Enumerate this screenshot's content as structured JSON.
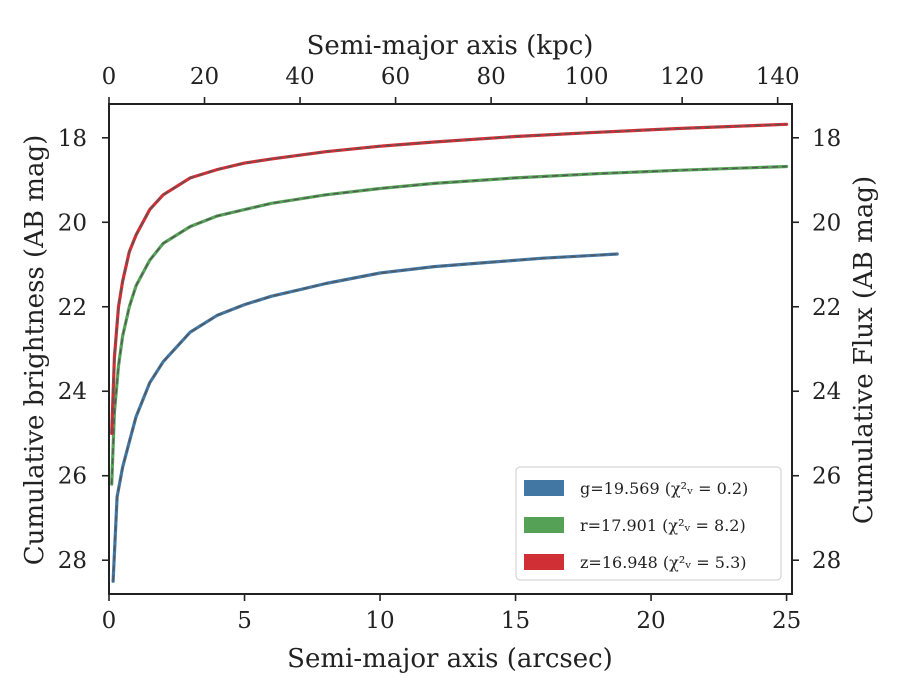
{
  "chart_data": {
    "type": "line",
    "title": "",
    "xlabel": "Semi-major axis (arcsec)",
    "x2label": "Semi-major axis (kpc)",
    "ylabel": "Cumulative brightness (AB mag)",
    "y2label": "Cumulative Flux (AB mag)",
    "xlim": [
      0,
      25.2
    ],
    "x2lim": [
      0,
      143
    ],
    "ylim": [
      28.8,
      17.2
    ],
    "y_inverted": true,
    "xticks": [
      "0",
      "5",
      "10",
      "15",
      "20",
      "25"
    ],
    "x2ticks": [
      "0",
      "20",
      "40",
      "60",
      "80",
      "100",
      "120",
      "140"
    ],
    "yticks": [
      "18",
      "20",
      "22",
      "24",
      "26",
      "28"
    ],
    "y2ticks": [
      "18",
      "20",
      "22",
      "24",
      "26",
      "28"
    ],
    "grid": false,
    "legend_position": "lower-right",
    "series": [
      {
        "name": "g=19.569 (χ²ᵥ = 0.2)",
        "color": "#4277a4",
        "x": [
          0.15,
          0.3,
          0.5,
          0.75,
          1.0,
          1.5,
          2.0,
          3.0,
          4.0,
          5.0,
          6.0,
          7.0,
          8.0,
          10.0,
          12.0,
          14.0,
          16.0,
          18.0,
          18.75
        ],
        "y": [
          28.5,
          26.5,
          25.8,
          25.2,
          24.6,
          23.8,
          23.3,
          22.6,
          22.2,
          21.95,
          21.75,
          21.6,
          21.45,
          21.2,
          21.05,
          20.95,
          20.85,
          20.78,
          20.75
        ]
      },
      {
        "name": "r=17.901 (χ²ᵥ = 8.2)",
        "color": "#55a257",
        "x": [
          0.1,
          0.2,
          0.35,
          0.5,
          0.75,
          1.0,
          1.5,
          2.0,
          3.0,
          4.0,
          5.0,
          6.0,
          8.0,
          10.0,
          12.0,
          15.0,
          18.0,
          21.0,
          25.0
        ],
        "y": [
          26.2,
          24.5,
          23.4,
          22.7,
          22.0,
          21.5,
          20.9,
          20.5,
          20.1,
          19.85,
          19.7,
          19.55,
          19.35,
          19.2,
          19.08,
          18.95,
          18.85,
          18.77,
          18.68
        ]
      },
      {
        "name": "z=16.948 (χ²ᵥ = 5.3)",
        "color": "#d03035",
        "x": [
          0.1,
          0.2,
          0.35,
          0.5,
          0.75,
          1.0,
          1.5,
          2.0,
          3.0,
          4.0,
          5.0,
          6.0,
          8.0,
          10.0,
          12.0,
          15.0,
          18.0,
          21.0,
          25.0
        ],
        "y": [
          25.0,
          23.2,
          22.0,
          21.4,
          20.7,
          20.3,
          19.7,
          19.35,
          18.95,
          18.75,
          18.6,
          18.5,
          18.33,
          18.2,
          18.1,
          17.97,
          17.87,
          17.78,
          17.68
        ]
      }
    ]
  }
}
